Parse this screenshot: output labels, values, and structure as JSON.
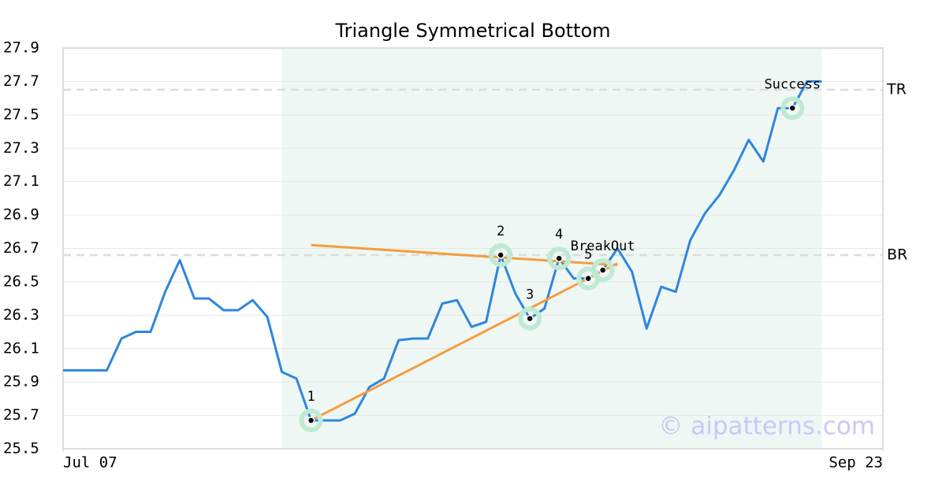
{
  "chart_data": {
    "type": "line",
    "title": "Triangle Symmetrical Bottom",
    "x": [
      0,
      1,
      2,
      3,
      4,
      5,
      6,
      7,
      8,
      9,
      10,
      11,
      12,
      13,
      14,
      15,
      16,
      17,
      18,
      19,
      20,
      21,
      22,
      23,
      24,
      25,
      26,
      27,
      28,
      29,
      30,
      31,
      32,
      33,
      34,
      35,
      36,
      37,
      38,
      39,
      40,
      41,
      42,
      43,
      44,
      45,
      46,
      47,
      48,
      49,
      50,
      51,
      52
    ],
    "xlim": [
      0,
      56.2
    ],
    "xticks": [
      {
        "value": 0,
        "label": "Jul 07"
      },
      {
        "value": 56.2,
        "label": "Sep 23"
      }
    ],
    "series": [
      {
        "color": "#2e86de",
        "values": [
          25.97,
          25.97,
          25.97,
          25.97,
          26.16,
          26.2,
          26.2,
          26.44,
          26.63,
          26.4,
          26.4,
          26.33,
          26.33,
          26.39,
          26.29,
          25.96,
          25.92,
          25.67,
          25.67,
          25.67,
          25.71,
          25.87,
          25.92,
          26.15,
          26.16,
          26.16,
          26.37,
          26.39,
          26.23,
          26.26,
          26.66,
          26.43,
          26.28,
          26.34,
          26.64,
          26.52,
          26.52,
          26.57,
          26.7,
          26.56,
          26.22,
          26.47,
          26.44,
          26.75,
          26.91,
          27.02,
          27.17,
          27.35,
          27.22,
          27.54,
          27.54,
          27.7,
          27.7
        ]
      }
    ],
    "ylim": [
      25.5,
      27.9
    ],
    "yticks": [
      25.5,
      25.7,
      25.9,
      26.1,
      26.3,
      26.5,
      26.7,
      26.9,
      27.1,
      27.3,
      27.5,
      27.7,
      27.9
    ],
    "grid": true,
    "shaded_x": [
      15,
      52
    ],
    "shade_color": "#eef7f3",
    "levels": [
      {
        "label": "TR",
        "value": 27.65
      },
      {
        "label": "BR",
        "value": 26.66
      }
    ],
    "trendline_color": "#f59d3f",
    "trendlines": [
      {
        "x": [
          17,
          38
        ],
        "values": [
          26.72,
          26.6
        ]
      },
      {
        "x": [
          17,
          38
        ],
        "values": [
          25.67,
          26.61
        ]
      }
    ],
    "points": [
      {
        "label": "1",
        "x": 17,
        "value": 25.67
      },
      {
        "label": "2",
        "x": 30,
        "value": 26.66
      },
      {
        "label": "3",
        "x": 32,
        "value": 26.28
      },
      {
        "label": "4",
        "x": 34,
        "value": 26.64
      },
      {
        "label": "5",
        "x": 36,
        "value": 26.52
      },
      {
        "label": "BreakOut",
        "x": 37,
        "value": 26.57
      },
      {
        "label": "Success",
        "x": 50,
        "value": 27.54
      }
    ],
    "watermark": "© aipatterns.com"
  }
}
